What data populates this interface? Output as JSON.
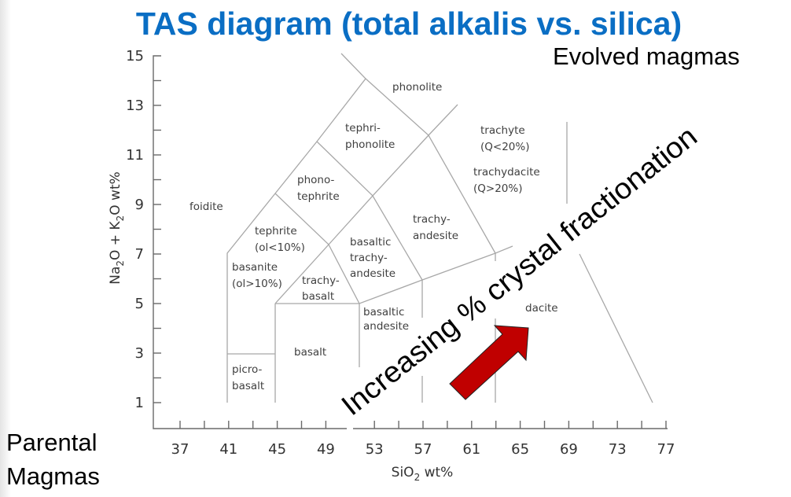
{
  "title": "TAS diagram (total alkalis vs. silica)",
  "annotations": {
    "evolved": "Evolved magmas",
    "parental_1": "Parental",
    "parental_2": "Magmas",
    "arrow_text": "Increasing % crystal fractionation",
    "arrow_color": "#c00000"
  },
  "axes": {
    "x_label_main": "SiO",
    "x_label_sub": "2",
    "x_label_rest": " wt%",
    "y_label_a": "Na",
    "y_label_a_sub": "2",
    "y_label_b": "O + K",
    "y_label_b_sub": "2",
    "y_label_c": "O wt%",
    "x_ticks": [
      "37",
      "41",
      "45",
      "49",
      "53",
      "57",
      "61",
      "65",
      "69",
      "73",
      "77"
    ],
    "y_ticks": [
      "15",
      "13",
      "11",
      "9",
      "7",
      "5",
      "3",
      "1"
    ],
    "x_range": [
      35,
      78
    ],
    "y_range": [
      0,
      15
    ]
  },
  "fields": {
    "phonolite": [
      "phonolite"
    ],
    "tephriphonolite": [
      "tephri-",
      "phonolite"
    ],
    "phonotephrite": [
      "phono-",
      "tephrite"
    ],
    "foidite": [
      "foidite"
    ],
    "tephrite": [
      "tephrite",
      "(ol<10%)"
    ],
    "basanite": [
      "basanite",
      "(ol>10%)"
    ],
    "trachybasalt": [
      "trachy-",
      "basalt"
    ],
    "basaltic_trachyandesite": [
      "basaltic",
      "trachy-",
      "andesite"
    ],
    "trachyandesite": [
      "trachy-",
      "andesite"
    ],
    "trachyte": [
      "trachyte",
      "(Q<20%)"
    ],
    "trachydacite": [
      "trachydacite",
      "(Q>20%)"
    ],
    "dacite": [
      "dacite"
    ],
    "basalt": [
      "basalt"
    ],
    "basaltic_andesite": [
      "basaltic",
      "andesite"
    ],
    "picrobasalt": [
      "picro-",
      "basalt"
    ]
  }
}
